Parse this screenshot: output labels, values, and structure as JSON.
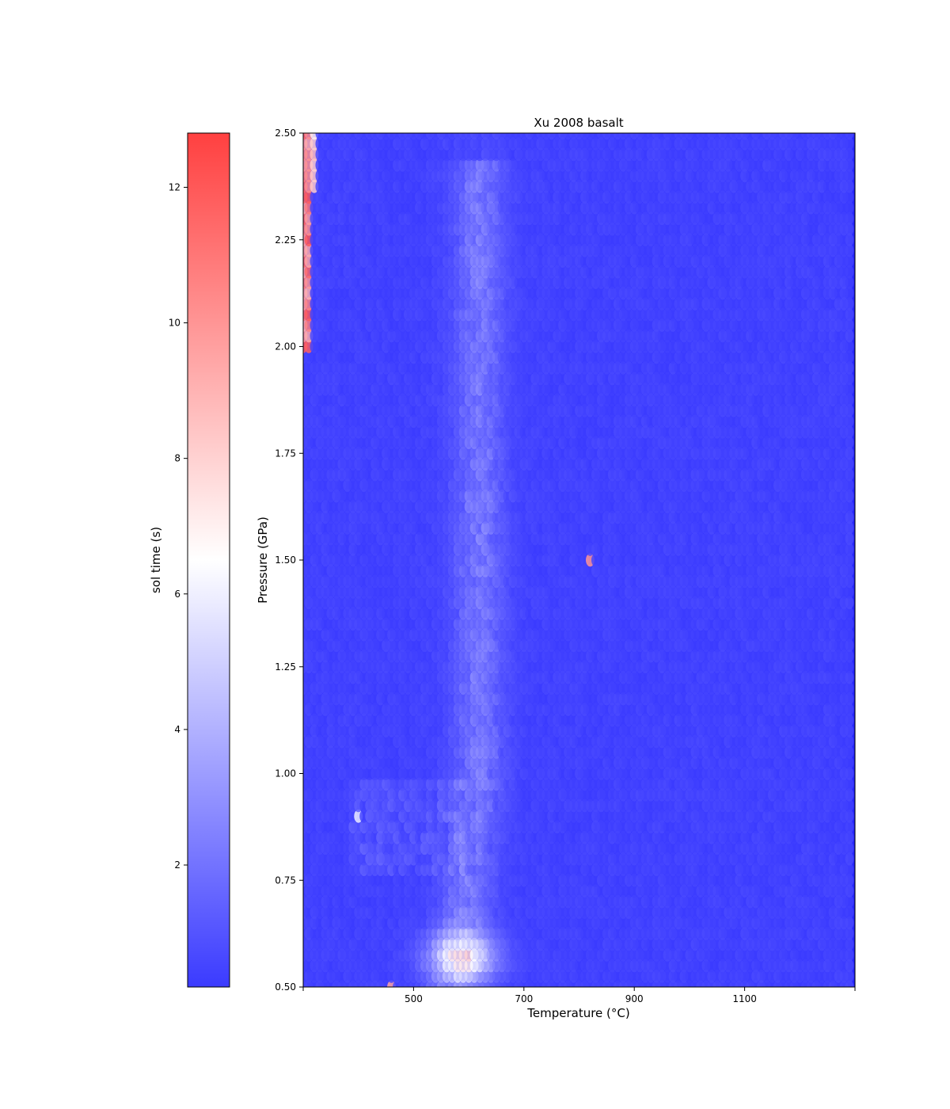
{
  "chart_data": {
    "type": "scatter",
    "title": "Xu 2008 basalt",
    "xlabel": "Temperature (°C)",
    "ylabel": "Pressure (GPa)",
    "xlim": [
      300,
      1300
    ],
    "ylim": [
      0.5,
      2.5
    ],
    "xticks": [
      "500",
      "700",
      "900",
      "1100"
    ],
    "yticks": [
      "0.50",
      "0.75",
      "1.00",
      "1.25",
      "1.50",
      "1.75",
      "2.00",
      "2.25",
      "2.50"
    ],
    "grid": false,
    "grid_points": {
      "temperature_step": 10,
      "pressure_step": 0.025
    },
    "colorbar": {
      "label": "sol time (s)",
      "cmap": [
        "#3b3bff",
        "#ffffff",
        "#ff4040"
      ],
      "range": [
        0.2,
        12.8
      ],
      "ticks": [
        "2",
        "4",
        "6",
        "8",
        "10",
        "12"
      ]
    },
    "background_color": "#1a1aff",
    "features": [
      {
        "description": "red column at low temperature, high pressure",
        "t": [
          300,
          310
        ],
        "p": [
          2.0,
          2.5
        ],
        "value": 10.5
      },
      {
        "description": "white patch near origin of low-pressure band",
        "t": [
          520,
          640
        ],
        "p": [
          0.52,
          0.62
        ],
        "value": 6.0
      },
      {
        "description": "lighter band around 580-680 C",
        "t": [
          560,
          680
        ],
        "p": [
          0.5,
          2.4
        ],
        "value": 2.5
      },
      {
        "description": "isolated red point",
        "t": 820,
        "p": 1.49,
        "value": 10.0
      },
      {
        "description": "white point",
        "t": 400,
        "p": 0.9,
        "value": 6.0
      }
    ]
  }
}
